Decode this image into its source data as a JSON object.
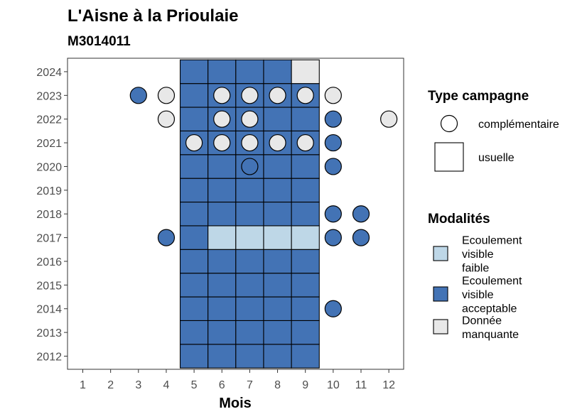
{
  "chart_data": {
    "type": "heatmap",
    "title": "L'Aisne à la Prioulaie",
    "subtitle": "M3014011",
    "xlabel": "Mois",
    "ylabel": "",
    "x_ticks": [
      1,
      2,
      3,
      4,
      5,
      6,
      7,
      8,
      9,
      10,
      11,
      12
    ],
    "y_ticks": [
      2012,
      2013,
      2014,
      2015,
      2016,
      2017,
      2018,
      2019,
      2020,
      2021,
      2022,
      2023,
      2024
    ],
    "legend_shape": {
      "title": "Type campagne",
      "items": [
        {
          "key": "complementaire",
          "label": "complémentaire",
          "shape": "circle"
        },
        {
          "key": "usuelle",
          "label": "usuelle",
          "shape": "square"
        }
      ]
    },
    "legend_fill": {
      "title": "Modalités",
      "items": [
        {
          "key": "faible",
          "label": "Ecoulement visible faible",
          "lines": [
            "Ecoulement",
            "visible",
            "faible"
          ],
          "color": "#bed7e7"
        },
        {
          "key": "acceptable",
          "label": "Ecoulement visible acceptable",
          "lines": [
            "Ecoulement",
            "visible",
            "acceptable"
          ],
          "color": "#4373b5"
        },
        {
          "key": "manquante",
          "label": "Donnée manquante",
          "lines": [
            "Donnée",
            "manquante"
          ],
          "color": "#e8e8e8"
        }
      ]
    },
    "usuelle_cells": [
      [
        5,
        2012,
        "acceptable"
      ],
      [
        6,
        2012,
        "acceptable"
      ],
      [
        7,
        2012,
        "acceptable"
      ],
      [
        8,
        2012,
        "acceptable"
      ],
      [
        9,
        2012,
        "acceptable"
      ],
      [
        5,
        2013,
        "acceptable"
      ],
      [
        6,
        2013,
        "acceptable"
      ],
      [
        7,
        2013,
        "acceptable"
      ],
      [
        8,
        2013,
        "acceptable"
      ],
      [
        9,
        2013,
        "acceptable"
      ],
      [
        5,
        2014,
        "acceptable"
      ],
      [
        6,
        2014,
        "acceptable"
      ],
      [
        7,
        2014,
        "acceptable"
      ],
      [
        8,
        2014,
        "acceptable"
      ],
      [
        9,
        2014,
        "acceptable"
      ],
      [
        5,
        2015,
        "acceptable"
      ],
      [
        6,
        2015,
        "acceptable"
      ],
      [
        7,
        2015,
        "acceptable"
      ],
      [
        8,
        2015,
        "acceptable"
      ],
      [
        9,
        2015,
        "acceptable"
      ],
      [
        5,
        2016,
        "acceptable"
      ],
      [
        6,
        2016,
        "acceptable"
      ],
      [
        7,
        2016,
        "acceptable"
      ],
      [
        8,
        2016,
        "acceptable"
      ],
      [
        9,
        2016,
        "acceptable"
      ],
      [
        5,
        2017,
        "acceptable"
      ],
      [
        6,
        2017,
        "faible"
      ],
      [
        7,
        2017,
        "faible"
      ],
      [
        8,
        2017,
        "faible"
      ],
      [
        9,
        2017,
        "faible"
      ],
      [
        5,
        2018,
        "acceptable"
      ],
      [
        6,
        2018,
        "acceptable"
      ],
      [
        7,
        2018,
        "acceptable"
      ],
      [
        8,
        2018,
        "acceptable"
      ],
      [
        9,
        2018,
        "acceptable"
      ],
      [
        5,
        2019,
        "acceptable"
      ],
      [
        6,
        2019,
        "acceptable"
      ],
      [
        7,
        2019,
        "acceptable"
      ],
      [
        8,
        2019,
        "acceptable"
      ],
      [
        9,
        2019,
        "acceptable"
      ],
      [
        5,
        2020,
        "acceptable"
      ],
      [
        6,
        2020,
        "acceptable"
      ],
      [
        7,
        2020,
        "acceptable"
      ],
      [
        8,
        2020,
        "acceptable"
      ],
      [
        9,
        2020,
        "acceptable"
      ],
      [
        5,
        2021,
        "acceptable"
      ],
      [
        6,
        2021,
        "acceptable"
      ],
      [
        7,
        2021,
        "acceptable"
      ],
      [
        8,
        2021,
        "acceptable"
      ],
      [
        9,
        2021,
        "acceptable"
      ],
      [
        5,
        2022,
        "acceptable"
      ],
      [
        6,
        2022,
        "acceptable"
      ],
      [
        7,
        2022,
        "acceptable"
      ],
      [
        8,
        2022,
        "acceptable"
      ],
      [
        9,
        2022,
        "acceptable"
      ],
      [
        5,
        2023,
        "acceptable"
      ],
      [
        6,
        2023,
        "acceptable"
      ],
      [
        7,
        2023,
        "acceptable"
      ],
      [
        8,
        2023,
        "acceptable"
      ],
      [
        9,
        2023,
        "acceptable"
      ],
      [
        5,
        2024,
        "acceptable"
      ],
      [
        6,
        2024,
        "acceptable"
      ],
      [
        7,
        2024,
        "acceptable"
      ],
      [
        8,
        2024,
        "acceptable"
      ],
      [
        9,
        2024,
        "manquante"
      ]
    ],
    "complementaire_points": [
      [
        3,
        2023,
        "acceptable"
      ],
      [
        4,
        2023,
        "manquante"
      ],
      [
        6,
        2023,
        "manquante"
      ],
      [
        7,
        2023,
        "manquante"
      ],
      [
        8,
        2023,
        "manquante"
      ],
      [
        9,
        2023,
        "manquante"
      ],
      [
        10,
        2023,
        "manquante"
      ],
      [
        4,
        2022,
        "manquante"
      ],
      [
        6,
        2022,
        "manquante"
      ],
      [
        7,
        2022,
        "manquante"
      ],
      [
        10,
        2022,
        "acceptable"
      ],
      [
        12,
        2022,
        "manquante"
      ],
      [
        5,
        2021,
        "manquante"
      ],
      [
        6,
        2021,
        "manquante"
      ],
      [
        7,
        2021,
        "manquante"
      ],
      [
        8,
        2021,
        "manquante"
      ],
      [
        9,
        2021,
        "manquante"
      ],
      [
        10,
        2021,
        "acceptable"
      ],
      [
        7,
        2020,
        "acceptable"
      ],
      [
        10,
        2020,
        "acceptable"
      ],
      [
        10,
        2018,
        "acceptable"
      ],
      [
        11,
        2018,
        "acceptable"
      ],
      [
        4,
        2017,
        "acceptable"
      ],
      [
        10,
        2017,
        "acceptable"
      ],
      [
        11,
        2017,
        "acceptable"
      ],
      [
        10,
        2014,
        "acceptable"
      ]
    ],
    "grid": false,
    "legend_position": "right"
  }
}
